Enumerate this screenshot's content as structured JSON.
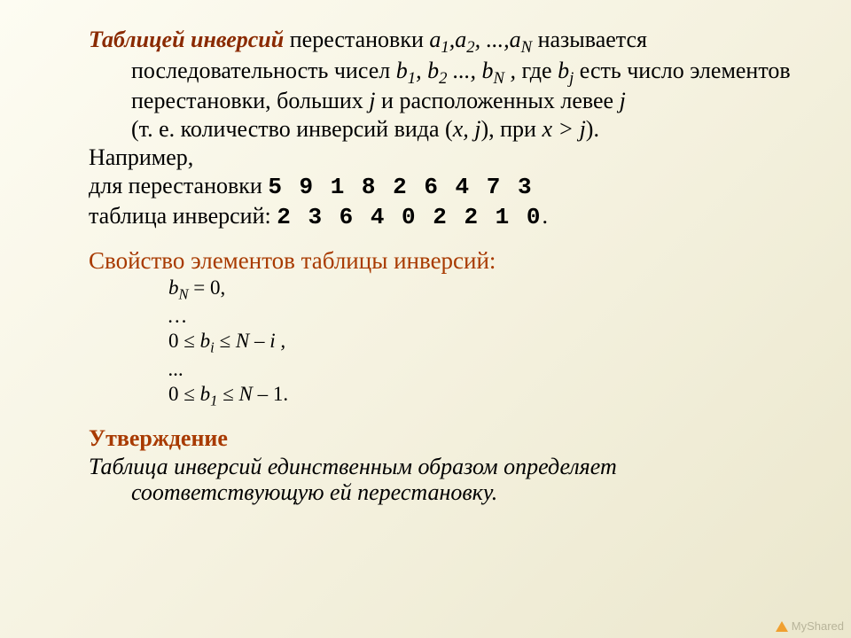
{
  "colors": {
    "accent": "#8a2a00",
    "accent2": "#a83a00",
    "text": "#000000",
    "bg_top": "#fdfcf2",
    "bg_bottom": "#ebe7cd",
    "logo_text": "#b8b49a",
    "logo_triangle": "#f0a030"
  },
  "typography": {
    "body_family": "Times New Roman",
    "body_size_pt": 20,
    "mono_family": "Courier New",
    "indent_small_size_pt": 17
  },
  "def": {
    "term": "Таблицей инверсий",
    "t1": " перестановки ",
    "a": "a",
    "s1": "1",
    "c1": ",",
    "s2": "2",
    "c2": ", ...,",
    "sN": "N",
    "t2": " называется последовательность чисел ",
    "b": "b",
    "bs1": "1",
    "bc1": ", ",
    "bs2": "2",
    "bc2": " ..., ",
    "bsN": "N",
    "bc3": " ,",
    "t3": " где ",
    "bj": "j",
    "t4": " есть число элементов перестановки, больших ",
    "j1": "j",
    "t5": " и расположенных левее ",
    "j2": "j"
  },
  "clar": {
    "t1": "(т. е. количество инверсий вида (",
    "x": "x, j",
    "t2": "), при ",
    "cond": "x > j",
    "t3": ")."
  },
  "ex": {
    "l1": "Например,",
    "l2a": "для перестановки  ",
    "perm": "5 9 1 8 2 6 4 7 3",
    "l3a": "таблица инверсий: ",
    "inv": "2 3 6 4 0 2 2 1 0",
    "dot": "."
  },
  "prop": {
    "title": "Свойство элементов таблицы инверсий:",
    "r1a": "b",
    "r1s": "N",
    "r1b": " = 0,",
    "r2": "…",
    "r3a": "0 ≤ ",
    "r3b": "b",
    "r3s": "i",
    "r3c": " ≤ ",
    "r3d": "N – i ,",
    "r4": "...",
    "r5a": "0 ≤ ",
    "r5b": "b",
    "r5s": "1",
    "r5c": " ≤ ",
    "r5d": "N",
    "r5e": " – 1."
  },
  "stmt": {
    "title": "Утверждение",
    "body": "Таблица инверсий единственным образом определяет соответствующую ей перестановку."
  },
  "logo": "MyShared"
}
